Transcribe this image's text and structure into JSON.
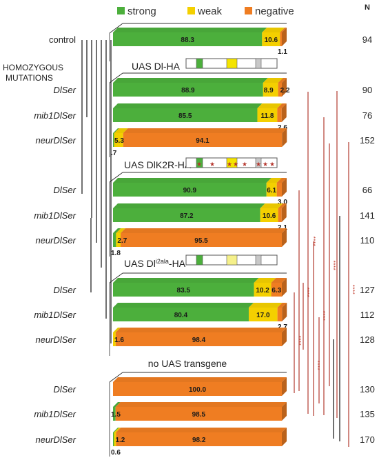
{
  "legend": {
    "items": [
      {
        "name": "strong",
        "color": "#4caf3c"
      },
      {
        "name": "weak",
        "color": "#f4d000"
      },
      {
        "name": "negative",
        "color": "#ef7d22"
      }
    ],
    "n_header": "N"
  },
  "chart_data": {
    "type": "bar",
    "stacked": true,
    "orientation": "horizontal",
    "xlim": [
      0,
      100
    ],
    "series_names": [
      "strong",
      "weak",
      "negative"
    ],
    "colors": {
      "strong": "#4caf3c",
      "weak": "#f4d000",
      "negative": "#ef7d22"
    },
    "section_headers": [
      {
        "text": "UAS Dl-HA",
        "before_row": 1,
        "construct": "wt"
      },
      {
        "text": "UAS DlK2R-HA",
        "before_row": 4,
        "construct": "k2r"
      },
      {
        "text": "UAS Dl",
        "sup": "i2ala",
        "suffix": "-HA",
        "before_row": 7,
        "construct": "i2ala"
      },
      {
        "text": "no UAS transgene",
        "before_row": 10,
        "construct": "none"
      }
    ],
    "group_header": "HOMOZYGOUS MUTATIONS",
    "rows": [
      {
        "label": "control",
        "italic": false,
        "strong": 88.3,
        "weak": 10.6,
        "negative": 1.1,
        "n": "94",
        "labels": [
          "88.3",
          "10.6",
          "1.1"
        ]
      },
      {
        "label": "DlSer",
        "italic": true,
        "strong": 88.9,
        "weak": 8.9,
        "negative": 2.2,
        "n": "90",
        "labels": [
          "88.9",
          "8.9",
          "2.2"
        ]
      },
      {
        "label": "mib1DlSer",
        "italic": true,
        "strong": 85.5,
        "weak": 11.8,
        "negative": 2.6,
        "n": "76",
        "labels": [
          "85.5",
          "11.8",
          "2.6"
        ]
      },
      {
        "label": "neurDlSer",
        "italic": true,
        "strong": 0.7,
        "weak": 5.3,
        "negative": 94.1,
        "n": "152",
        "labels": ".7|5.3|94.1"
      },
      {
        "label": "DlSer",
        "italic": true,
        "strong": 90.9,
        "weak": 6.1,
        "negative": 3.0,
        "n": "66",
        "labels": [
          "90.9",
          "6.1",
          "3.0"
        ]
      },
      {
        "label": "mib1DlSer",
        "italic": true,
        "strong": 87.2,
        "weak": 10.6,
        "negative": 2.1,
        "n": "141",
        "labels": [
          "87.2",
          "10.6",
          "2.1"
        ]
      },
      {
        "label": "neurDlSer",
        "italic": true,
        "strong": 1.8,
        "weak": 2.7,
        "negative": 95.5,
        "n": "110",
        "labels": [
          "1.8",
          "2.7",
          "95.5"
        ]
      },
      {
        "label": "DlSer",
        "italic": true,
        "strong": 83.5,
        "weak": 10.2,
        "negative": 6.3,
        "n": "127",
        "labels": [
          "83.5",
          "10.2",
          "6.3"
        ]
      },
      {
        "label": "mib1DlSer",
        "italic": true,
        "strong": 80.4,
        "weak": 17.0,
        "negative": 2.7,
        "n": "112",
        "labels": [
          "80.4",
          "17.0",
          "2.7"
        ]
      },
      {
        "label": "neurDlSer",
        "italic": true,
        "strong": 0.0,
        "weak": 1.6,
        "negative": 98.4,
        "n": "128",
        "labels": [
          "",
          "1.6",
          "98.4"
        ]
      },
      {
        "label": "DlSer",
        "italic": true,
        "strong": 0.0,
        "weak": 0.0,
        "negative": 100.0,
        "n": "130",
        "labels": [
          "",
          "",
          "100.0"
        ]
      },
      {
        "label": "mib1DlSer",
        "italic": true,
        "strong": 1.5,
        "weak": 0.0,
        "negative": 98.5,
        "n": "135",
        "labels": [
          "1.5",
          "",
          "98.5"
        ]
      },
      {
        "label": "neurDlSer",
        "italic": true,
        "strong": 0.6,
        "weak": 1.2,
        "negative": 98.2,
        "n": "170",
        "labels": [
          "0.6",
          "1.2",
          "98.2"
        ]
      }
    ],
    "significance_marker": "****"
  }
}
